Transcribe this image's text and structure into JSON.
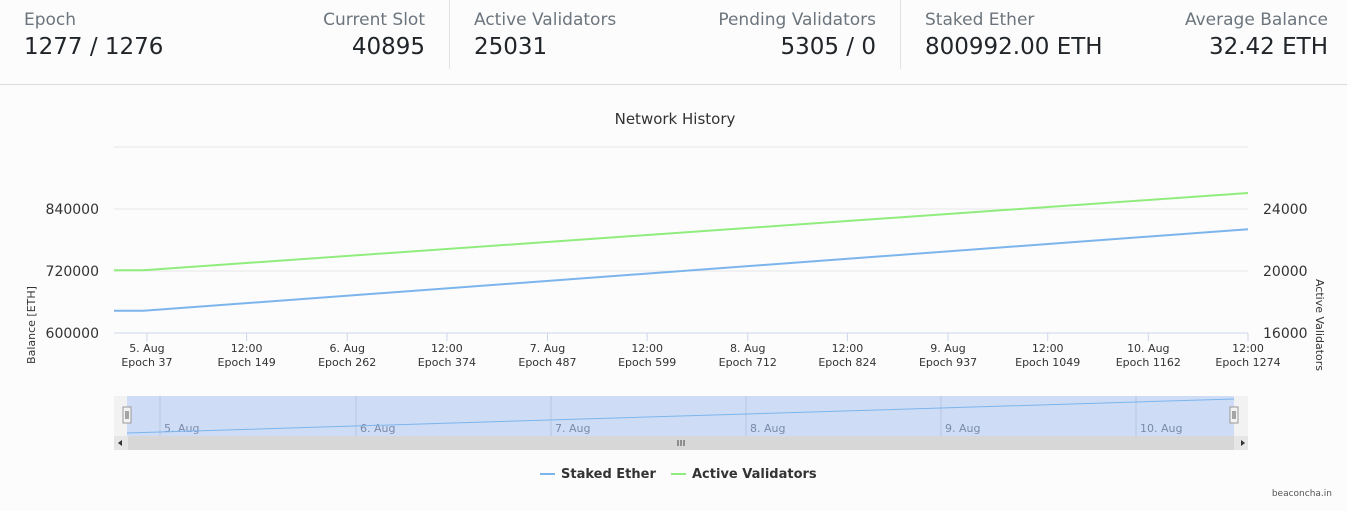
{
  "stats": [
    {
      "label": "Epoch",
      "value": "1277 / 1276"
    },
    {
      "label": "Current Slot",
      "value": "40895"
    },
    {
      "label": "Active Validators",
      "value": "25031"
    },
    {
      "label": "Pending Validators",
      "value": "5305 / 0"
    },
    {
      "label": "Staked Ether",
      "value": "800992.00 ETH"
    },
    {
      "label": "Average Balance",
      "value": "32.42 ETH"
    }
  ],
  "chart_data": {
    "type": "line",
    "title": "Network History",
    "y_left": {
      "label": "Balance [ETH]",
      "ticks": [
        "600000",
        "720000",
        "840000"
      ],
      "range": [
        600000,
        960000
      ]
    },
    "y_right": {
      "label": "Active Validators",
      "ticks": [
        "16000",
        "20000",
        "24000"
      ],
      "range": [
        16000,
        28000
      ]
    },
    "x_ticks": [
      [
        "5. Aug",
        "Epoch 37"
      ],
      [
        "12:00",
        "Epoch 149"
      ],
      [
        "6. Aug",
        "Epoch 262"
      ],
      [
        "12:00",
        "Epoch 374"
      ],
      [
        "7. Aug",
        "Epoch 487"
      ],
      [
        "12:00",
        "Epoch 599"
      ],
      [
        "8. Aug",
        "Epoch 712"
      ],
      [
        "12:00",
        "Epoch 824"
      ],
      [
        "9. Aug",
        "Epoch 937"
      ],
      [
        "12:00",
        "Epoch 1049"
      ],
      [
        "10. Aug",
        "Epoch 1162"
      ],
      [
        "12:00",
        "Epoch 1274"
      ]
    ],
    "series": [
      {
        "name": "Staked Ether",
        "axis": "left",
        "color": "#7cb5ec",
        "points": [
          [
            0,
            643000
          ],
          [
            33,
            643000
          ],
          [
            1274,
            800992
          ]
        ]
      },
      {
        "name": "Active Validators",
        "axis": "right",
        "color": "#90ed7d",
        "points": [
          [
            0,
            20050
          ],
          [
            33,
            20050
          ],
          [
            1274,
            25031
          ]
        ]
      }
    ],
    "navigator": {
      "labels": [
        "5. Aug",
        "6. Aug",
        "7. Aug",
        "8. Aug",
        "9. Aug",
        "10. Aug"
      ]
    },
    "legend": "bottom-center",
    "credit": "beaconcha.in"
  }
}
